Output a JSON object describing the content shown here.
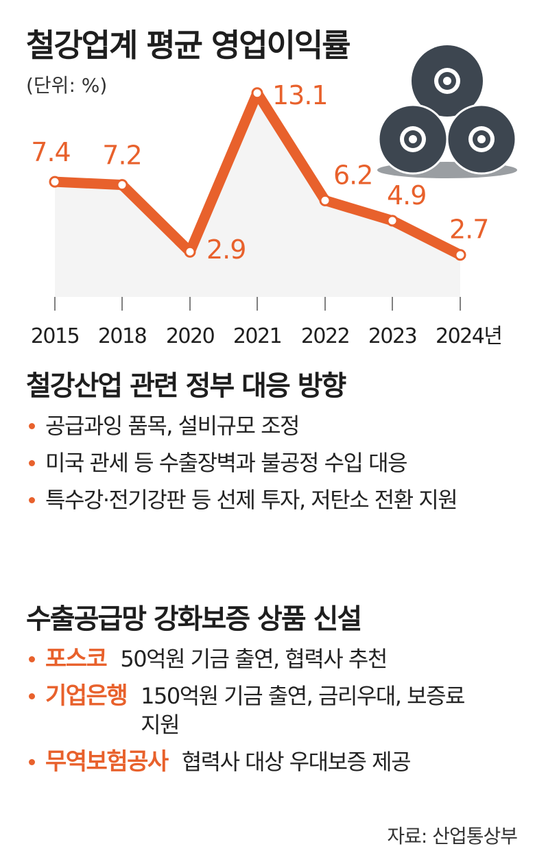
{
  "chart_data": {
    "type": "line",
    "title": "철강업계 평균 영업이익률",
    "unit_label": "(단위: %)",
    "categories": [
      "2015",
      "2018",
      "2020",
      "2021",
      "2022",
      "2023",
      "2024년"
    ],
    "values": [
      7.4,
      7.2,
      2.9,
      13.1,
      6.2,
      4.9,
      2.7
    ],
    "value_labels": [
      "7.4",
      "7.2",
      "2.9",
      "13.1",
      "6.2",
      "4.9",
      "2.7"
    ],
    "ylim": [
      0,
      16
    ],
    "grid": false,
    "line_color": "#e8612c",
    "fill_color": "#f4f4f4",
    "decoration": "steel-coils-icon"
  },
  "section1": {
    "title": "철강산업 관련 정부 대응 방향",
    "items": [
      "공급과잉 품목, 설비규모 조정",
      "미국 관세 등 수출장벽과 불공정 수입 대응",
      "특수강·전기강판 등 선제 투자, 저탄소 전환 지원"
    ]
  },
  "section2": {
    "title": "수출공급망 강화보증 상품 신설",
    "items": [
      {
        "org": "포스코",
        "desc": "50억원 기금 출연, 협력사 추천"
      },
      {
        "org": "기업은행",
        "desc": "150억원 기금 출연, 금리우대, 보증료 지원"
      },
      {
        "org": "무역보험공사",
        "desc": "협력사 대상 우대보증 제공"
      }
    ]
  },
  "source": "자료: 산업통상부",
  "colors": {
    "accent": "#e8612c",
    "coil": "#3d4650",
    "text": "#1e1e1e"
  }
}
